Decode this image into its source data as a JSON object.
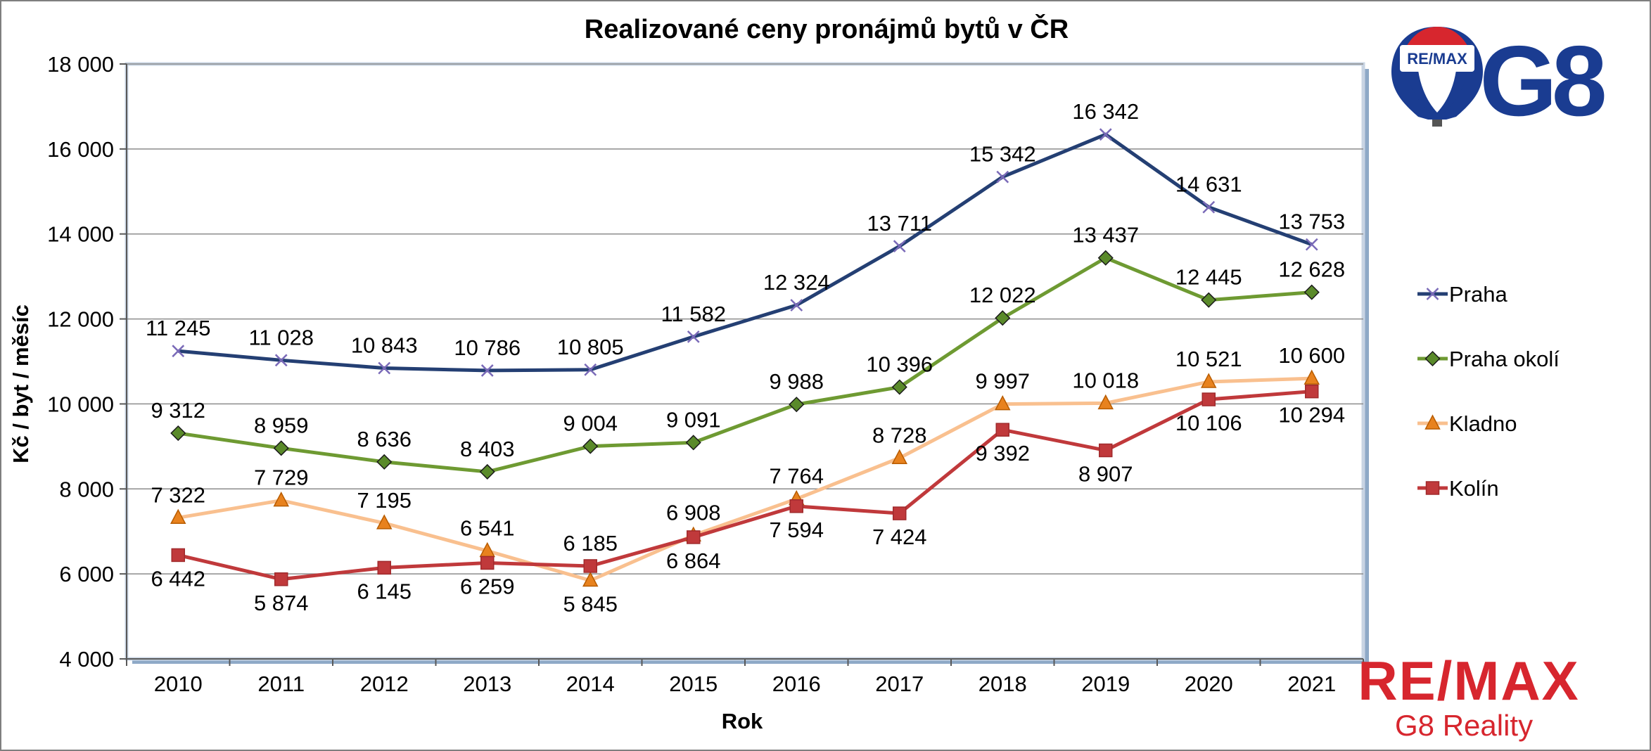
{
  "chart_data": {
    "type": "line",
    "title": "Realizované ceny pronájmů bytů v ČR",
    "xlabel": "Rok",
    "ylabel": "Kč / byt / měsíc",
    "ylim": [
      4000,
      18000
    ],
    "yticks": [
      4000,
      6000,
      8000,
      10000,
      12000,
      14000,
      16000,
      18000
    ],
    "ytick_labels": [
      "4 000",
      "6 000",
      "8 000",
      "10 000",
      "12 000",
      "14 000",
      "16 000",
      "18 000"
    ],
    "grid": true,
    "legend_position": "right",
    "categories": [
      "2010",
      "2011",
      "2012",
      "2013",
      "2014",
      "2015",
      "2016",
      "2017",
      "2018",
      "2019",
      "2020",
      "2021"
    ],
    "series": [
      {
        "name": "Praha",
        "color": "#243F73",
        "marker": "x",
        "values": [
          11245,
          11028,
          10843,
          10786,
          10805,
          11582,
          12324,
          13711,
          15342,
          16342,
          14631,
          13753
        ],
        "labels": [
          "11 245",
          "11 028",
          "10 843",
          "10 786",
          "10 805",
          "11 582",
          "12 324",
          "13 711",
          "15 342",
          "16 342",
          "14 631",
          "13 753"
        ],
        "label_pos": [
          "above",
          "above",
          "above",
          "above",
          "above",
          "above",
          "above",
          "above",
          "above",
          "above",
          "above",
          "above"
        ]
      },
      {
        "name": "Praha okolí",
        "color": "#6E9A32",
        "marker": "diamond",
        "values": [
          9312,
          8959,
          8636,
          8403,
          9004,
          9091,
          9988,
          10396,
          12022,
          13437,
          12445,
          12628
        ],
        "labels": [
          "9 312",
          "8 959",
          "8 636",
          "8 403",
          "9 004",
          "9 091",
          "9 988",
          "10 396",
          "12 022",
          "13 437",
          "12 445",
          "12 628"
        ],
        "label_pos": [
          "above",
          "above",
          "above",
          "above",
          "above",
          "above",
          "above",
          "above",
          "above",
          "above",
          "above",
          "above"
        ]
      },
      {
        "name": "Kladno",
        "color": "#F9C08F",
        "marker": "triangle",
        "values": [
          7322,
          7729,
          7195,
          6541,
          5845,
          6908,
          7764,
          8728,
          9997,
          10018,
          10521,
          10600
        ],
        "labels": [
          "7 322",
          "7 729",
          "7 195",
          "6 541",
          "5 845",
          "6 908",
          "7 764",
          "8 728",
          "9 997",
          "10 018",
          "10 521",
          "10 600"
        ],
        "label_pos": [
          "above",
          "above",
          "above",
          "above",
          "below",
          "above",
          "above",
          "above",
          "above",
          "above",
          "above",
          "above"
        ]
      },
      {
        "name": "Kolín",
        "color": "#C0393B",
        "marker": "square",
        "values": [
          6442,
          5874,
          6145,
          6259,
          6185,
          6864,
          7594,
          7424,
          9392,
          8907,
          10106,
          10294
        ],
        "labels": [
          "6 442",
          "5 874",
          "6 145",
          "6 259",
          "6 185",
          "6 864",
          "7 594",
          "7 424",
          "9 392",
          "8 907",
          "10 106",
          "10 294"
        ],
        "label_pos": [
          "below",
          "below",
          "below",
          "below",
          "above",
          "below",
          "below",
          "below",
          "below",
          "below",
          "below",
          "below"
        ]
      }
    ]
  },
  "branding": {
    "balloon_text": "RE/MAX",
    "office_code": "G8",
    "brand_name": "RE/MAX",
    "office_name": "G8 Reality",
    "brand_red": "#D7262E",
    "brand_blue": "#1A3C91"
  }
}
